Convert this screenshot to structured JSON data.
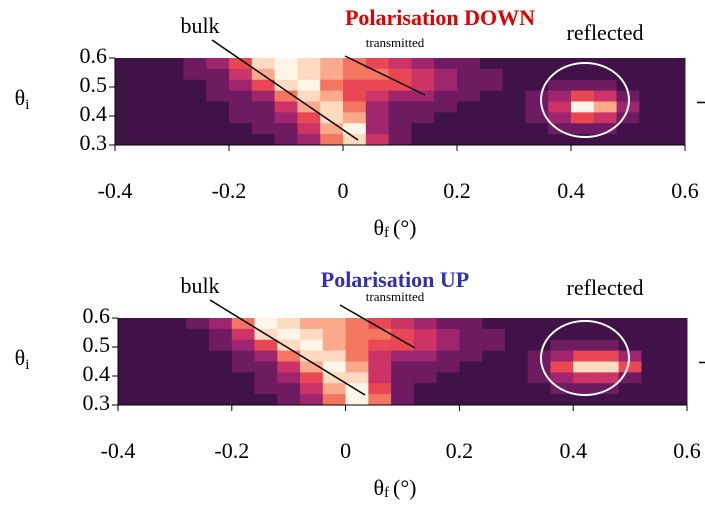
{
  "chart_data": [
    {
      "type": "heatmap",
      "title": "Polarisation DOWN",
      "title_color": "#e00000",
      "xlabel": {
        "symbol": "θ",
        "sub": "f",
        "unit": "(°)"
      },
      "ylabel": {
        "symbol": "θ",
        "sub": "i"
      },
      "annotations": {
        "bulk": "bulk",
        "transmitted": "transmitted",
        "reflected": "reflected"
      },
      "xlim": [
        -0.4,
        0.6
      ],
      "ylim": [
        0.3,
        0.6
      ],
      "xticks": [
        -0.4,
        -0.2,
        0,
        0.2,
        0.4,
        0.6
      ],
      "yticks": [
        0.6,
        0.5,
        0.4,
        0.3
      ],
      "zlim": [
        0,
        9
      ],
      "colors": [
        "#1e0a2c",
        "#4a1450",
        "#8a2070",
        "#c8306a",
        "#ec4a50",
        "#f88a68",
        "#fcd2b4",
        "#fff4e8"
      ],
      "z": [
        [
          1,
          1,
          1,
          2,
          3,
          5,
          8,
          9,
          8,
          7,
          6,
          5,
          4,
          3,
          2,
          2,
          1,
          1,
          1,
          1,
          1,
          1,
          1,
          1,
          1
        ],
        [
          1,
          1,
          1,
          2,
          2,
          4,
          7,
          9,
          8,
          7,
          6,
          6,
          5,
          4,
          3,
          2,
          2,
          1,
          1,
          1,
          1,
          1,
          1,
          1,
          1
        ],
        [
          1,
          1,
          1,
          1,
          2,
          3,
          5,
          8,
          9,
          6,
          5,
          5,
          5,
          4,
          3,
          2,
          2,
          1,
          1,
          2,
          2,
          2,
          1,
          1,
          1
        ],
        [
          1,
          1,
          1,
          1,
          2,
          2,
          3,
          6,
          8,
          7,
          5,
          4,
          3,
          3,
          2,
          2,
          1,
          1,
          2,
          3,
          5,
          4,
          2,
          1,
          1
        ],
        [
          1,
          1,
          1,
          1,
          1,
          2,
          2,
          4,
          7,
          8,
          6,
          3,
          2,
          2,
          2,
          1,
          1,
          1,
          2,
          4,
          9,
          7,
          3,
          1,
          1
        ],
        [
          1,
          1,
          1,
          1,
          1,
          2,
          2,
          3,
          5,
          8,
          7,
          3,
          2,
          2,
          1,
          1,
          1,
          1,
          2,
          3,
          5,
          4,
          2,
          1,
          1
        ],
        [
          1,
          1,
          1,
          1,
          1,
          1,
          2,
          2,
          4,
          7,
          9,
          3,
          2,
          1,
          1,
          1,
          1,
          1,
          1,
          2,
          2,
          2,
          1,
          1,
          1
        ],
        [
          1,
          1,
          1,
          1,
          1,
          1,
          1,
          2,
          3,
          6,
          8,
          4,
          2,
          1,
          1,
          1,
          1,
          1,
          1,
          1,
          1,
          1,
          1,
          1,
          1
        ]
      ]
    },
    {
      "type": "heatmap",
      "title": "Polarisation UP",
      "title_color": "#3030b0",
      "xlabel": {
        "symbol": "θ",
        "sub": "f",
        "unit": "(°)"
      },
      "ylabel": {
        "symbol": "θ",
        "sub": "i"
      },
      "annotations": {
        "bulk": "bulk",
        "transmitted": "transmitted",
        "reflected": "reflected"
      },
      "xlim": [
        -0.4,
        0.6
      ],
      "ylim": [
        0.3,
        0.6
      ],
      "xticks": [
        -0.4,
        -0.2,
        0,
        0.2,
        0.4,
        0.6
      ],
      "yticks": [
        0.6,
        0.5,
        0.4,
        0.3
      ],
      "zlim": [
        0,
        9
      ],
      "colors": [
        "#1e0a2c",
        "#4a1450",
        "#8a2070",
        "#c8306a",
        "#ec4a50",
        "#f88a68",
        "#fcd2b4",
        "#fff4e8"
      ],
      "z": [
        [
          1,
          1,
          1,
          2,
          3,
          6,
          9,
          8,
          7,
          7,
          6,
          5,
          4,
          3,
          2,
          2,
          1,
          1,
          1,
          1,
          1,
          1,
          1,
          1,
          1
        ],
        [
          1,
          1,
          1,
          1,
          2,
          4,
          8,
          9,
          8,
          7,
          6,
          6,
          5,
          4,
          3,
          2,
          2,
          1,
          1,
          1,
          1,
          1,
          1,
          1,
          1
        ],
        [
          1,
          1,
          1,
          1,
          2,
          3,
          5,
          8,
          9,
          7,
          6,
          5,
          5,
          4,
          3,
          2,
          2,
          1,
          1,
          2,
          2,
          2,
          1,
          1,
          1
        ],
        [
          1,
          1,
          1,
          1,
          1,
          2,
          3,
          6,
          8,
          8,
          6,
          4,
          3,
          3,
          2,
          2,
          1,
          1,
          2,
          3,
          5,
          5,
          3,
          1,
          1
        ],
        [
          1,
          1,
          1,
          1,
          1,
          2,
          2,
          4,
          7,
          9,
          7,
          4,
          2,
          2,
          2,
          1,
          1,
          1,
          2,
          5,
          8,
          8,
          5,
          1,
          1
        ],
        [
          1,
          1,
          1,
          1,
          1,
          1,
          2,
          3,
          5,
          8,
          8,
          4,
          2,
          2,
          1,
          1,
          1,
          1,
          2,
          3,
          4,
          4,
          2,
          1,
          1
        ],
        [
          1,
          1,
          1,
          1,
          1,
          1,
          2,
          2,
          4,
          7,
          9,
          5,
          2,
          1,
          1,
          1,
          1,
          1,
          1,
          2,
          2,
          2,
          1,
          1,
          1
        ],
        [
          1,
          1,
          1,
          1,
          1,
          1,
          1,
          2,
          3,
          6,
          9,
          6,
          2,
          1,
          1,
          1,
          1,
          1,
          1,
          1,
          1,
          1,
          1,
          1,
          1
        ]
      ]
    }
  ]
}
